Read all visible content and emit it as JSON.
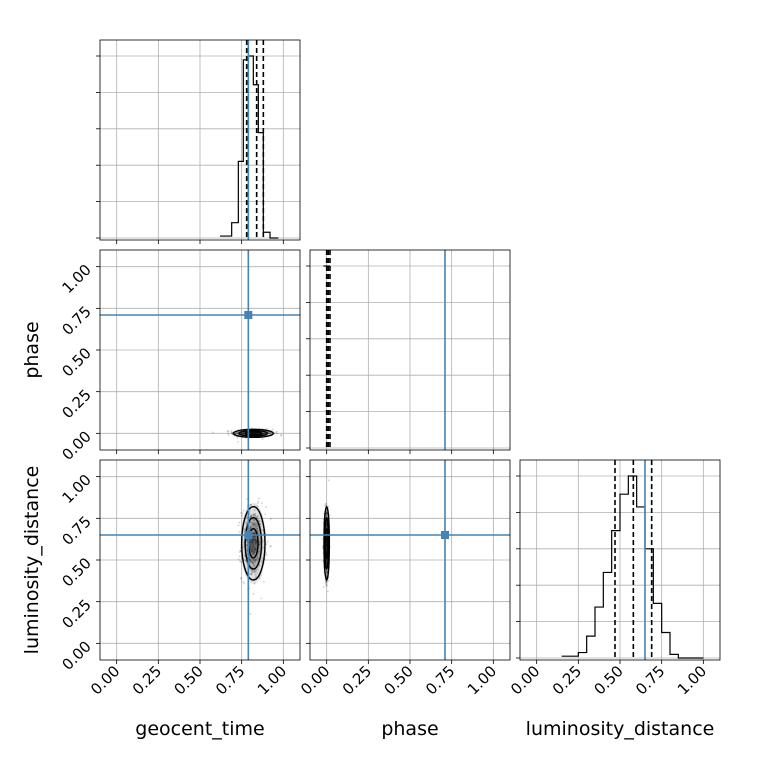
{
  "chart_data": {
    "type": "corner",
    "parameters": [
      "geocent_time",
      "phase",
      "luminosity_distance"
    ],
    "axis_label_text": {
      "geocent_time": "geocent_time",
      "phase": "phase",
      "luminosity_distance": "luminosity_distance"
    },
    "xlim": [
      -0.1,
      1.1
    ],
    "ylim": [
      -0.1,
      1.1
    ],
    "tick_values": [
      0.0,
      0.25,
      0.5,
      0.75,
      1.0
    ],
    "tick_labels": [
      "0.00",
      "0.25",
      "0.50",
      "0.75",
      "1.00"
    ],
    "grid": true,
    "truth_color": "#4682b4",
    "truths": {
      "geocent_time": 0.79,
      "phase": 0.71,
      "luminosity_distance": 0.65
    },
    "histograms": {
      "geocent_time": {
        "bin_edges": [
          0.62,
          0.69,
          0.73,
          0.76,
          0.79,
          0.82,
          0.85,
          0.88,
          0.92,
          0.97
        ],
        "counts": [
          1,
          8,
          40,
          93,
          95,
          80,
          55,
          3,
          0
        ],
        "quantiles": [
          0.78,
          0.84,
          0.88
        ]
      },
      "phase": {
        "bin_edges": [
          -0.02,
          0.0,
          0.02
        ],
        "counts": [
          100,
          100
        ],
        "quantiles": [
          0.0,
          0.01,
          0.02
        ]
      },
      "luminosity_distance": {
        "bin_edges": [
          0.15,
          0.25,
          0.3,
          0.35,
          0.4,
          0.45,
          0.5,
          0.55,
          0.6,
          0.65,
          0.7,
          0.75,
          0.8,
          0.85,
          0.9,
          1.0
        ],
        "counts": [
          1,
          3,
          12,
          28,
          47,
          70,
          90,
          100,
          83,
          60,
          30,
          14,
          2,
          0,
          0
        ],
        "quantiles": [
          0.47,
          0.58,
          0.69
        ]
      }
    },
    "joint_panels": [
      {
        "x": "geocent_time",
        "y": "phase",
        "center": [
          0.82,
          0.0
        ],
        "spread": [
          0.06,
          0.012
        ]
      },
      {
        "x": "geocent_time",
        "y": "luminosity_distance",
        "center": [
          0.82,
          0.6
        ],
        "spread": [
          0.035,
          0.11
        ]
      },
      {
        "x": "phase",
        "y": "luminosity_distance",
        "center": [
          0.0,
          0.6
        ],
        "spread": [
          0.008,
          0.11
        ]
      }
    ]
  }
}
